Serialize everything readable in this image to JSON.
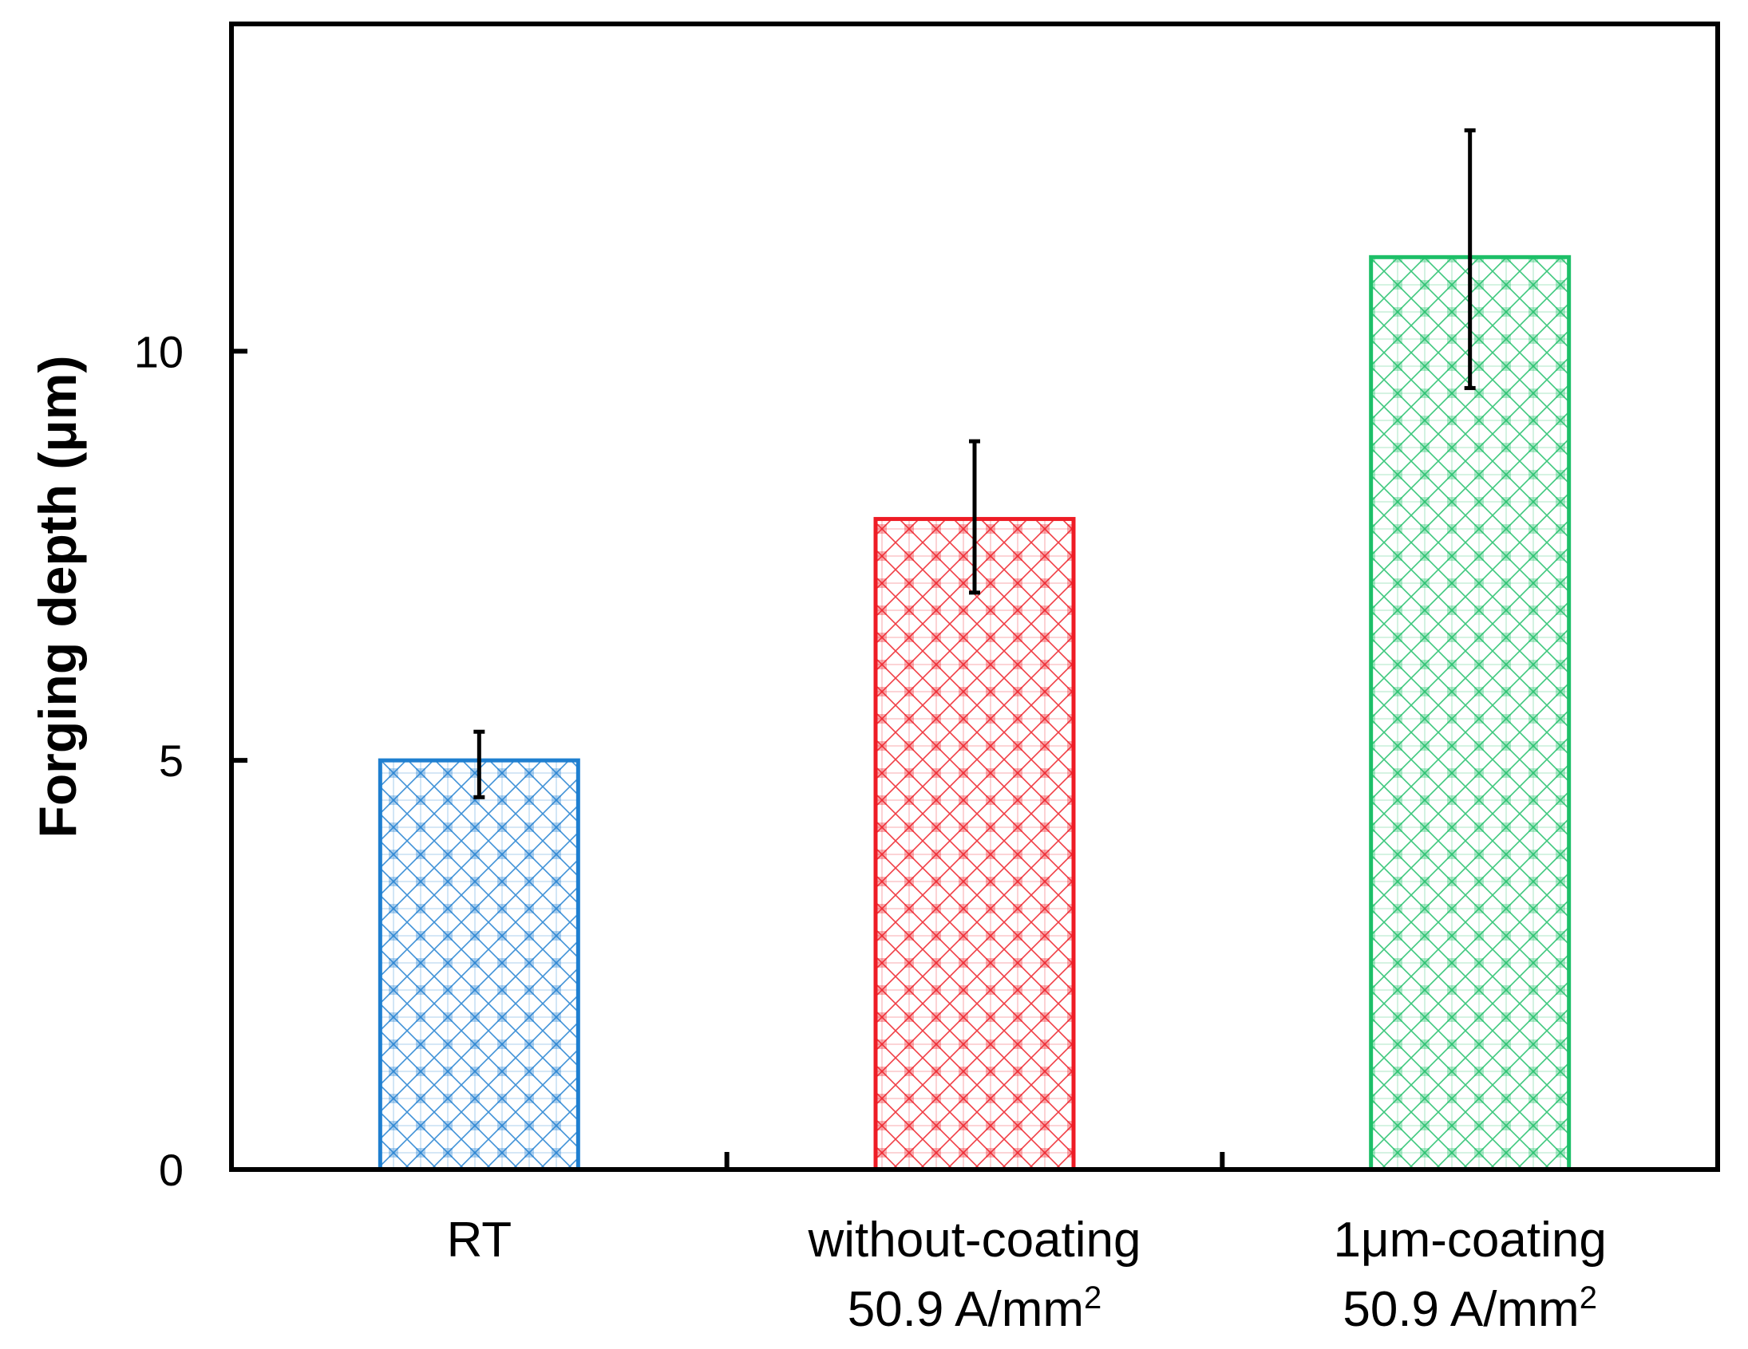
{
  "chart_data": {
    "type": "bar",
    "title": "",
    "xlabel": "",
    "ylabel": "Forging depth (μm)",
    "ylim": [
      0,
      14
    ],
    "yticks": [
      {
        "value": 0,
        "label": "0"
      },
      {
        "value": 5,
        "label": "5"
      },
      {
        "value": 10,
        "label": "10"
      }
    ],
    "grid": false,
    "categories": [
      {
        "line1": "RT",
        "line2": "",
        "line2_sup": ""
      },
      {
        "line1": "without-coating",
        "line2": "50.9 A/mm",
        "line2_sup": "2"
      },
      {
        "line1": "1μm-coating",
        "line2": "50.9 A/mm",
        "line2_sup": "2"
      }
    ],
    "values": [
      5.0,
      7.95,
      11.15
    ],
    "error_low": [
      4.55,
      7.05,
      9.55
    ],
    "error_high": [
      5.35,
      8.9,
      12.7
    ],
    "colors": [
      "#1f7fd0",
      "#ee1c25",
      "#1dbf68"
    ]
  }
}
